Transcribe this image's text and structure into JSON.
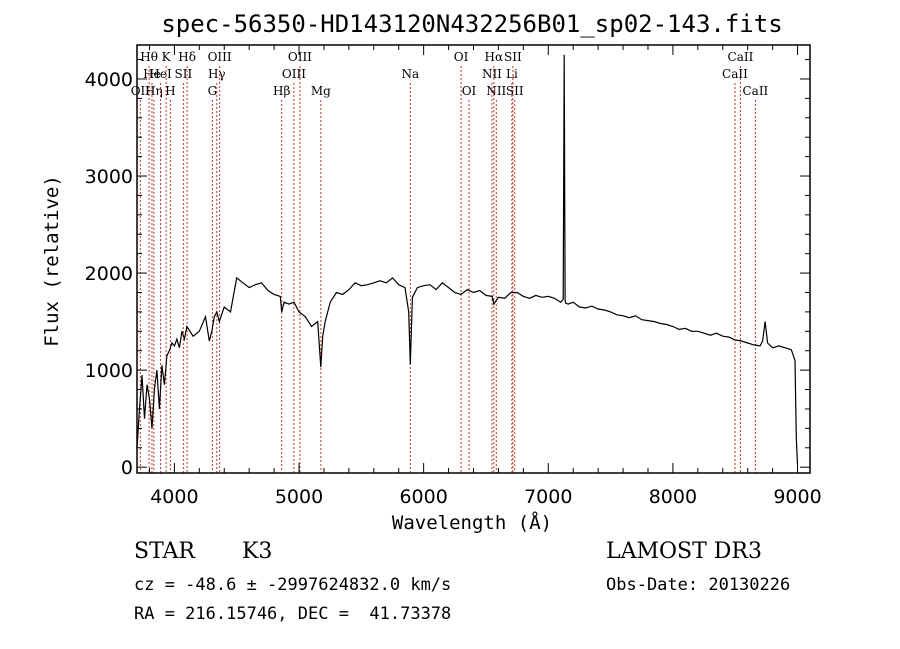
{
  "chart_data": {
    "type": "line",
    "title": "spec-56350-HD143120N432256B01_sp02-143.fits",
    "xlabel": "Wavelength (Å)",
    "ylabel": "Flux (relative)",
    "xlim": [
      3700,
      9100
    ],
    "ylim": [
      -60,
      4350
    ],
    "xticks": [
      4000,
      5000,
      6000,
      7000,
      8000,
      9000
    ],
    "yticks": [
      0,
      1000,
      2000,
      3000,
      4000
    ],
    "grid": false,
    "series": [
      {
        "name": "flux",
        "x": [
          3700,
          3720,
          3740,
          3760,
          3780,
          3800,
          3820,
          3840,
          3860,
          3880,
          3900,
          3920,
          3940,
          3960,
          3980,
          4000,
          4020,
          4040,
          4060,
          4080,
          4100,
          4150,
          4200,
          4250,
          4280,
          4300,
          4320,
          4340,
          4360,
          4400,
          4450,
          4500,
          4550,
          4600,
          4650,
          4700,
          4750,
          4800,
          4850,
          4861,
          4880,
          4920,
          4960,
          5000,
          5050,
          5100,
          5150,
          5175,
          5190,
          5210,
          5250,
          5300,
          5350,
          5400,
          5450,
          5500,
          5550,
          5600,
          5650,
          5700,
          5750,
          5800,
          5850,
          5880,
          5893,
          5910,
          5950,
          6000,
          6050,
          6100,
          6150,
          6200,
          6250,
          6300,
          6350,
          6400,
          6450,
          6500,
          6550,
          6563,
          6600,
          6650,
          6700,
          6750,
          6800,
          6850,
          6900,
          6950,
          7000,
          7050,
          7100,
          7120,
          7128,
          7135,
          7140,
          7160,
          7200,
          7250,
          7300,
          7350,
          7400,
          7450,
          7500,
          7550,
          7600,
          7650,
          7700,
          7750,
          7800,
          7850,
          7900,
          7950,
          8000,
          8050,
          8100,
          8150,
          8200,
          8250,
          8300,
          8350,
          8400,
          8450,
          8500,
          8550,
          8600,
          8650,
          8700,
          8720,
          8740,
          8760,
          8800,
          8850,
          8900,
          8950,
          8980,
          8990,
          9000
        ],
        "values": [
          200,
          600,
          950,
          500,
          850,
          700,
          400,
          800,
          1000,
          600,
          1050,
          850,
          1150,
          1200,
          1280,
          1250,
          1320,
          1230,
          1400,
          1320,
          1450,
          1350,
          1400,
          1550,
          1300,
          1400,
          1550,
          1600,
          1500,
          1650,
          1600,
          1950,
          1900,
          1850,
          1880,
          1900,
          1820,
          1780,
          1760,
          1600,
          1700,
          1680,
          1700,
          1600,
          1550,
          1450,
          1500,
          1030,
          1350,
          1500,
          1700,
          1800,
          1780,
          1830,
          1900,
          1870,
          1880,
          1900,
          1920,
          1900,
          1950,
          1880,
          1850,
          1600,
          1060,
          1750,
          1850,
          1870,
          1880,
          1830,
          1900,
          1850,
          1800,
          1780,
          1830,
          1800,
          1820,
          1770,
          1760,
          1680,
          1750,
          1740,
          1800,
          1800,
          1760,
          1740,
          1770,
          1750,
          1760,
          1740,
          1700,
          1730,
          4250,
          1720,
          1690,
          1680,
          1700,
          1650,
          1640,
          1660,
          1630,
          1620,
          1600,
          1570,
          1560,
          1540,
          1560,
          1520,
          1510,
          1500,
          1480,
          1470,
          1450,
          1420,
          1430,
          1400,
          1400,
          1380,
          1360,
          1380,
          1350,
          1340,
          1310,
          1300,
          1280,
          1260,
          1250,
          1300,
          1500,
          1280,
          1230,
          1250,
          1230,
          1210,
          1100,
          300,
          30
        ]
      }
    ],
    "line_markers": [
      {
        "label": "Hθ",
        "x": 3797,
        "row": 1
      },
      {
        "label": "K",
        "x": 3934,
        "row": 1
      },
      {
        "label": "Hδ",
        "x": 4102,
        "row": 1
      },
      {
        "label": "OIII",
        "x": 4363,
        "row": 1
      },
      {
        "label": "OIII",
        "x": 5007,
        "row": 1
      },
      {
        "label": "OI",
        "x": 6300,
        "row": 1
      },
      {
        "label": "Hα",
        "x": 6563,
        "row": 1
      },
      {
        "label": "SII",
        "x": 6716,
        "row": 1
      },
      {
        "label": "CaII",
        "x": 8542,
        "row": 1
      },
      {
        "label": "He",
        "x": 3820,
        "row": 2
      },
      {
        "label": "HeI",
        "x": 3889,
        "row": 2
      },
      {
        "label": "SII",
        "x": 4072,
        "row": 2
      },
      {
        "label": "Hγ",
        "x": 4340,
        "row": 2
      },
      {
        "label": "OIII",
        "x": 4959,
        "row": 2
      },
      {
        "label": "Na",
        "x": 5893,
        "row": 2
      },
      {
        "label": "NII",
        "x": 6548,
        "row": 2
      },
      {
        "label": "Li",
        "x": 6708,
        "row": 2
      },
      {
        "label": "CaII",
        "x": 8498,
        "row": 2
      },
      {
        "label": "OII",
        "x": 3727,
        "row": 3
      },
      {
        "label": "Hη",
        "x": 3835,
        "row": 3
      },
      {
        "label": "H",
        "x": 3968,
        "row": 3
      },
      {
        "label": "G",
        "x": 4305,
        "row": 3
      },
      {
        "label": "Hβ",
        "x": 4861,
        "row": 3
      },
      {
        "label": "Mg",
        "x": 5175,
        "row": 3
      },
      {
        "label": "OI",
        "x": 6364,
        "row": 3
      },
      {
        "label": "NII",
        "x": 6583,
        "row": 3
      },
      {
        "label": "SII",
        "x": 6731,
        "row": 3
      },
      {
        "label": "CaII",
        "x": 8662,
        "row": 3
      }
    ]
  },
  "info": {
    "object_type": "STAR",
    "subclass": "K3",
    "survey": "LAMOST DR3",
    "cz_line": "cz = -48.6 ± -2997624832.0 km/s",
    "obs_date_line": "Obs-Date: 20130226",
    "coords_line": "RA = 216.15746, DEC =  41.73378"
  },
  "colors": {
    "line_marker": "#c0392b",
    "spectrum": "#000000",
    "frame": "#000000"
  }
}
